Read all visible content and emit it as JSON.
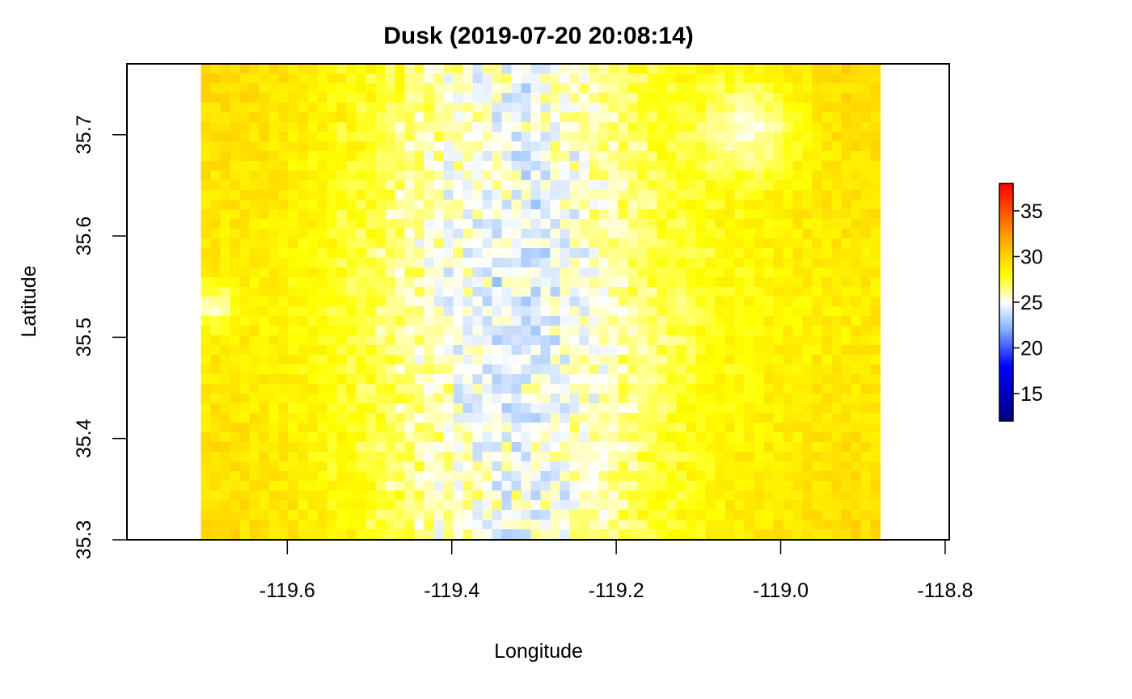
{
  "chart_data": {
    "type": "heatmap",
    "title": "Dusk (2019-07-20 20:08:14)",
    "xlabel": "Longitude",
    "ylabel": "Latitude",
    "xlim": [
      -119.795,
      -118.795
    ],
    "ylim": [
      35.3,
      35.77
    ],
    "x_ticks": [
      {
        "value": -119.6,
        "label": "-119.6"
      },
      {
        "value": -119.4,
        "label": "-119.4"
      },
      {
        "value": -119.2,
        "label": "-119.2"
      },
      {
        "value": -119.0,
        "label": "-119.0"
      },
      {
        "value": -118.8,
        "label": "-118.8"
      }
    ],
    "y_ticks": [
      {
        "value": 35.3,
        "label": "35.3"
      },
      {
        "value": 35.4,
        "label": "35.4"
      },
      {
        "value": 35.5,
        "label": "35.5"
      },
      {
        "value": 35.6,
        "label": "35.6"
      },
      {
        "value": 35.7,
        "label": "35.7"
      }
    ],
    "raster_extent": {
      "lon": [
        -119.705,
        -118.885
      ],
      "lat": [
        35.3,
        35.77
      ]
    },
    "grid": false,
    "colorbar": {
      "range": [
        12,
        38
      ],
      "ticks": [
        {
          "value": 15,
          "label": "15"
        },
        {
          "value": 20,
          "label": "20"
        },
        {
          "value": 25,
          "label": "25"
        },
        {
          "value": 30,
          "label": "30"
        },
        {
          "value": 35,
          "label": "35"
        }
      ],
      "color_stops": [
        {
          "value": 12,
          "color": "#000080"
        },
        {
          "value": 18,
          "color": "#0000ff"
        },
        {
          "value": 22,
          "color": "#7fb2ff"
        },
        {
          "value": 25,
          "color": "#ffffff"
        },
        {
          "value": 28,
          "color": "#ffff00"
        },
        {
          "value": 32,
          "color": "#ffa500"
        },
        {
          "value": 38,
          "color": "#ff0000"
        }
      ]
    }
  }
}
